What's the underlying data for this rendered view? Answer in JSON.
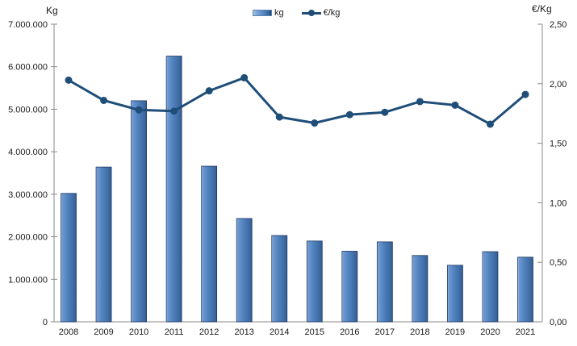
{
  "chart_data": {
    "type": "combo-bar-line",
    "title": "",
    "categories": [
      "2008",
      "2009",
      "2010",
      "2011",
      "2012",
      "2013",
      "2014",
      "2015",
      "2016",
      "2017",
      "2018",
      "2019",
      "2020",
      "2021"
    ],
    "series": [
      {
        "name": "kg",
        "type": "bar",
        "axis": "left",
        "values": [
          3020000,
          3640000,
          5200000,
          6250000,
          3660000,
          2430000,
          2030000,
          1900000,
          1660000,
          1880000,
          1560000,
          1330000,
          1650000,
          1520000
        ]
      },
      {
        "name": "€/kg",
        "type": "line",
        "axis": "right",
        "values": [
          2.03,
          1.86,
          1.78,
          1.77,
          1.94,
          2.05,
          1.72,
          1.67,
          1.74,
          1.76,
          1.85,
          1.82,
          1.66,
          1.91
        ]
      }
    ],
    "left_axis": {
      "title": "Kg",
      "min": 0,
      "max": 7000000,
      "tick_step": 1000000,
      "tick_labels": [
        "0",
        "1.000.000",
        "2.000.000",
        "3.000.000",
        "4.000.000",
        "5.000.000",
        "6.000.000",
        "7.000.000"
      ]
    },
    "right_axis": {
      "title": "€/Kg",
      "min": 0,
      "max": 2.5,
      "tick_step": 0.5,
      "tick_labels": [
        "0,00",
        "0,50",
        "1,00",
        "1,50",
        "2,00",
        "2,50"
      ]
    },
    "legend": {
      "position": "top-center",
      "entries": [
        "kg",
        "€/kg"
      ]
    },
    "grid": false,
    "colors": {
      "bar_fill": "#4f81bd",
      "bar_fill_light": "#9dbce4",
      "bar_fill_dark": "#325d94",
      "bar_border": "#203864",
      "line": "#1f4e79",
      "axis": "#8a8a8a",
      "text": "#1a1a1a"
    }
  }
}
